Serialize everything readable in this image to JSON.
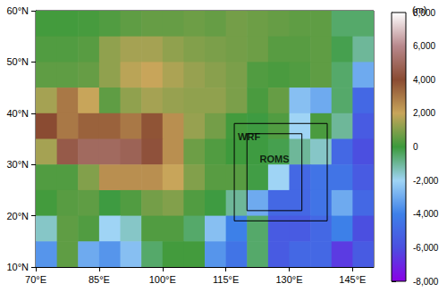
{
  "chart_data": {
    "type": "map",
    "xlim": [
      70,
      150
    ],
    "ylim": [
      10,
      60
    ],
    "xticks": [
      {
        "value": 70,
        "label": "70°E"
      },
      {
        "value": 85,
        "label": "85°E"
      },
      {
        "value": 100,
        "label": "100°E"
      },
      {
        "value": 115,
        "label": "115°E"
      },
      {
        "value": 130,
        "label": "130°E"
      },
      {
        "value": 145,
        "label": "145°E"
      }
    ],
    "yticks": [
      {
        "value": 10,
        "label": "10°N"
      },
      {
        "value": 20,
        "label": "20°N"
      },
      {
        "value": 30,
        "label": "30°N"
      },
      {
        "value": 40,
        "label": "40°N"
      },
      {
        "value": 50,
        "label": "50°N"
      },
      {
        "value": 60,
        "label": "60°N"
      }
    ],
    "elevation": {
      "lon": [
        72.5,
        77.5,
        82.5,
        87.5,
        92.5,
        97.5,
        102.5,
        107.5,
        112.5,
        117.5,
        122.5,
        127.5,
        132.5,
        137.5,
        142.5,
        147.5
      ],
      "lat": [
        57.5,
        52.5,
        47.5,
        42.5,
        37.5,
        32.5,
        27.5,
        22.5,
        17.5,
        12.5
      ],
      "values": [
        [
          100,
          100,
          150,
          300,
          500,
          600,
          600,
          700,
          600,
          800,
          700,
          600,
          500,
          500,
          -500,
          -500
        ],
        [
          300,
          300,
          400,
          1200,
          1500,
          1500,
          1200,
          1000,
          900,
          800,
          700,
          400,
          400,
          500,
          -200,
          -1000
        ],
        [
          500,
          500,
          600,
          1200,
          1800,
          2000,
          1600,
          1300,
          1100,
          900,
          300,
          200,
          300,
          500,
          -500,
          -3000
        ],
        [
          1500,
          3000,
          2000,
          500,
          1200,
          1500,
          1300,
          1200,
          1200,
          900,
          200,
          600,
          -2500,
          -3000,
          -500,
          -5000
        ],
        [
          4000,
          3000,
          3500,
          3500,
          3000,
          3800,
          2500,
          1300,
          800,
          100,
          -50,
          300,
          -2000,
          200,
          -1000,
          -5500
        ],
        [
          1500,
          4500,
          5000,
          5000,
          4800,
          4200,
          2500,
          700,
          300,
          30,
          -50,
          -200,
          -1000,
          -1500,
          -5000,
          -6000
        ],
        [
          300,
          300,
          1000,
          2500,
          2500,
          2500,
          2000,
          1000,
          400,
          400,
          -100,
          -2000,
          -5000,
          -4500,
          -4500,
          -5500
        ],
        [
          100,
          400,
          500,
          -50,
          300,
          800,
          1000,
          300,
          -50,
          -1000,
          -3000,
          -5000,
          -5000,
          -4500,
          -3000,
          -5000
        ],
        [
          -1500,
          500,
          300,
          -2000,
          -1500,
          300,
          300,
          -500,
          -2500,
          -4000,
          -500,
          -5500,
          -5500,
          -5000,
          -4000,
          -6000
        ],
        [
          -3500,
          500,
          -3000,
          -3500,
          -2500,
          -500,
          100,
          100,
          -3500,
          -4500,
          -500,
          -5500,
          -5000,
          -5000,
          -6500,
          -5500
        ]
      ]
    },
    "colorbar": {
      "label": "(m)",
      "range": [
        -8000,
        8000
      ],
      "ticks": [
        -8000,
        -6000,
        -4000,
        -2000,
        0,
        2000,
        4000,
        6000,
        8000
      ],
      "colors": [
        "#8a00e6",
        "#4b4fe0",
        "#3d80e8",
        "#9fd4f5",
        "#3c9a3c",
        "#c8a55a",
        "#8a4b32",
        "#b8888c",
        "#ffffff"
      ]
    },
    "boxes": [
      {
        "label": "WRF",
        "lon": [
          117,
          139
        ],
        "lat": [
          19,
          38
        ],
        "label_at": [
          120.5,
          35.5
        ]
      },
      {
        "label": "ROMS",
        "lon": [
          120,
          133
        ],
        "lat": [
          21,
          36
        ],
        "label_at": [
          126.5,
          31
        ]
      }
    ]
  }
}
